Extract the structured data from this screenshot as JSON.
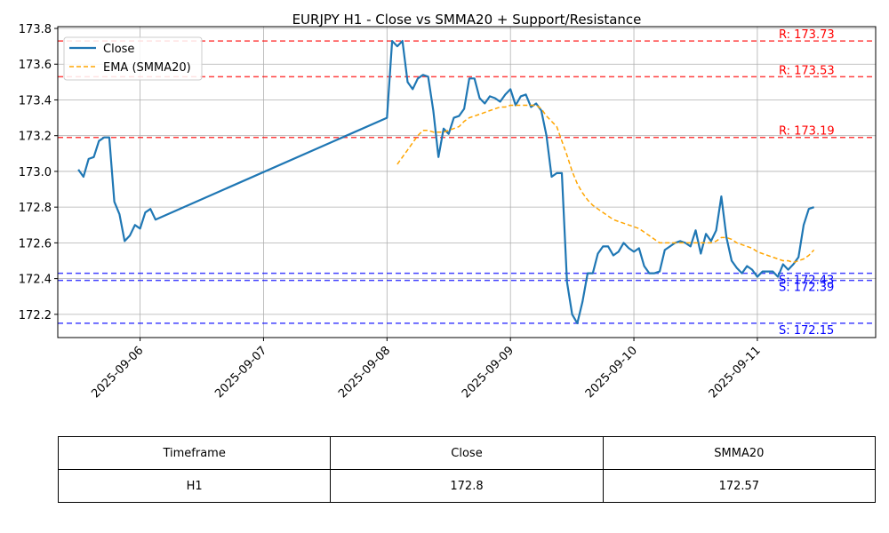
{
  "chart_data": {
    "type": "line",
    "title": "EURJPY H1 - Close vs SMMA20 + Support/Resistance",
    "xlabel": "",
    "ylabel": "",
    "ylim": [
      172.07,
      173.81
    ],
    "xlim": [
      "2025-09-05 08:00",
      "2025-09-11 23:00"
    ],
    "grid": true,
    "legend_position": "top-left",
    "y_ticks": [
      "172.2",
      "172.4",
      "172.6",
      "172.8",
      "173.0",
      "173.2",
      "173.4",
      "173.6",
      "173.8"
    ],
    "x_ticks": [
      "2025-09-06",
      "2025-09-07",
      "2025-09-08",
      "2025-09-09",
      "2025-09-10",
      "2025-09-11"
    ],
    "series": [
      {
        "name": "Close",
        "color": "#1f77b4",
        "style": "solid",
        "points": [
          [
            "2025-09-05 12:00",
            173.01
          ],
          [
            "2025-09-05 13:00",
            172.97
          ],
          [
            "2025-09-05 14:00",
            173.07
          ],
          [
            "2025-09-05 15:00",
            173.08
          ],
          [
            "2025-09-05 16:00",
            173.17
          ],
          [
            "2025-09-05 17:00",
            173.19
          ],
          [
            "2025-09-05 18:00",
            173.19
          ],
          [
            "2025-09-05 19:00",
            172.83
          ],
          [
            "2025-09-05 20:00",
            172.76
          ],
          [
            "2025-09-05 21:00",
            172.61
          ],
          [
            "2025-09-05 22:00",
            172.64
          ],
          [
            "2025-09-05 23:00",
            172.7
          ],
          [
            "2025-09-06 00:00",
            172.68
          ],
          [
            "2025-09-06 01:00",
            172.77
          ],
          [
            "2025-09-06 02:00",
            172.79
          ],
          [
            "2025-09-06 03:00",
            172.73
          ],
          [
            "2025-09-08 00:00",
            173.3
          ],
          [
            "2025-09-08 01:00",
            173.73
          ],
          [
            "2025-09-08 02:00",
            173.7
          ],
          [
            "2025-09-08 03:00",
            173.73
          ],
          [
            "2025-09-08 04:00",
            173.5
          ],
          [
            "2025-09-08 05:00",
            173.46
          ],
          [
            "2025-09-08 06:00",
            173.52
          ],
          [
            "2025-09-08 07:00",
            173.54
          ],
          [
            "2025-09-08 08:00",
            173.53
          ],
          [
            "2025-09-08 09:00",
            173.34
          ],
          [
            "2025-09-08 10:00",
            173.08
          ],
          [
            "2025-09-08 11:00",
            173.24
          ],
          [
            "2025-09-08 12:00",
            173.21
          ],
          [
            "2025-09-08 13:00",
            173.3
          ],
          [
            "2025-09-08 14:00",
            173.31
          ],
          [
            "2025-09-08 15:00",
            173.35
          ],
          [
            "2025-09-08 16:00",
            173.52
          ],
          [
            "2025-09-08 17:00",
            173.52
          ],
          [
            "2025-09-08 18:00",
            173.41
          ],
          [
            "2025-09-08 19:00",
            173.38
          ],
          [
            "2025-09-08 20:00",
            173.42
          ],
          [
            "2025-09-08 21:00",
            173.41
          ],
          [
            "2025-09-08 22:00",
            173.39
          ],
          [
            "2025-09-08 23:00",
            173.43
          ],
          [
            "2025-09-09 00:00",
            173.46
          ],
          [
            "2025-09-09 01:00",
            173.37
          ],
          [
            "2025-09-09 02:00",
            173.42
          ],
          [
            "2025-09-09 03:00",
            173.43
          ],
          [
            "2025-09-09 04:00",
            173.36
          ],
          [
            "2025-09-09 05:00",
            173.38
          ],
          [
            "2025-09-09 06:00",
            173.34
          ],
          [
            "2025-09-09 07:00",
            173.2
          ],
          [
            "2025-09-09 08:00",
            172.97
          ],
          [
            "2025-09-09 09:00",
            172.99
          ],
          [
            "2025-09-09 10:00",
            172.99
          ],
          [
            "2025-09-09 11:00",
            172.38
          ],
          [
            "2025-09-09 12:00",
            172.2
          ],
          [
            "2025-09-09 13:00",
            172.15
          ],
          [
            "2025-09-09 14:00",
            172.27
          ],
          [
            "2025-09-09 15:00",
            172.43
          ],
          [
            "2025-09-09 16:00",
            172.43
          ],
          [
            "2025-09-09 17:00",
            172.54
          ],
          [
            "2025-09-09 18:00",
            172.58
          ],
          [
            "2025-09-09 19:00",
            172.58
          ],
          [
            "2025-09-09 20:00",
            172.53
          ],
          [
            "2025-09-09 21:00",
            172.55
          ],
          [
            "2025-09-09 22:00",
            172.6
          ],
          [
            "2025-09-09 23:00",
            172.57
          ],
          [
            "2025-09-10 00:00",
            172.55
          ],
          [
            "2025-09-10 01:00",
            172.57
          ],
          [
            "2025-09-10 02:00",
            172.47
          ],
          [
            "2025-09-10 03:00",
            172.43
          ],
          [
            "2025-09-10 04:00",
            172.43
          ],
          [
            "2025-09-10 05:00",
            172.44
          ],
          [
            "2025-09-10 06:00",
            172.56
          ],
          [
            "2025-09-10 07:00",
            172.58
          ],
          [
            "2025-09-10 08:00",
            172.6
          ],
          [
            "2025-09-10 09:00",
            172.61
          ],
          [
            "2025-09-10 10:00",
            172.6
          ],
          [
            "2025-09-10 11:00",
            172.58
          ],
          [
            "2025-09-10 12:00",
            172.67
          ],
          [
            "2025-09-10 13:00",
            172.54
          ],
          [
            "2025-09-10 14:00",
            172.65
          ],
          [
            "2025-09-10 15:00",
            172.61
          ],
          [
            "2025-09-10 16:00",
            172.67
          ],
          [
            "2025-09-10 17:00",
            172.86
          ],
          [
            "2025-09-10 18:00",
            172.63
          ],
          [
            "2025-09-10 19:00",
            172.5
          ],
          [
            "2025-09-10 20:00",
            172.46
          ],
          [
            "2025-09-10 21:00",
            172.43
          ],
          [
            "2025-09-10 22:00",
            172.47
          ],
          [
            "2025-09-10 23:00",
            172.45
          ],
          [
            "2025-09-11 00:00",
            172.41
          ],
          [
            "2025-09-11 01:00",
            172.44
          ],
          [
            "2025-09-11 02:00",
            172.44
          ],
          [
            "2025-09-11 03:00",
            172.44
          ],
          [
            "2025-09-11 04:00",
            172.41
          ],
          [
            "2025-09-11 05:00",
            172.48
          ],
          [
            "2025-09-11 06:00",
            172.45
          ],
          [
            "2025-09-11 07:00",
            172.48
          ],
          [
            "2025-09-11 08:00",
            172.52
          ],
          [
            "2025-09-11 09:00",
            172.7
          ],
          [
            "2025-09-11 10:00",
            172.79
          ],
          [
            "2025-09-11 11:00",
            172.8
          ]
        ]
      },
      {
        "name": "EMA (SMMA20)",
        "color": "#ffa500",
        "style": "dashed",
        "points": [
          [
            "2025-09-08 02:00",
            173.04
          ],
          [
            "2025-09-08 03:00",
            173.08
          ],
          [
            "2025-09-08 04:00",
            173.12
          ],
          [
            "2025-09-08 05:00",
            173.16
          ],
          [
            "2025-09-08 06:00",
            173.2
          ],
          [
            "2025-09-08 07:00",
            173.23
          ],
          [
            "2025-09-08 08:00",
            173.23
          ],
          [
            "2025-09-08 09:00",
            173.22
          ],
          [
            "2025-09-08 10:00",
            173.22
          ],
          [
            "2025-09-08 11:00",
            173.22
          ],
          [
            "2025-09-08 12:00",
            173.23
          ],
          [
            "2025-09-08 13:00",
            173.24
          ],
          [
            "2025-09-08 14:00",
            173.25
          ],
          [
            "2025-09-08 15:00",
            173.28
          ],
          [
            "2025-09-08 16:00",
            173.3
          ],
          [
            "2025-09-08 17:00",
            173.31
          ],
          [
            "2025-09-08 18:00",
            173.32
          ],
          [
            "2025-09-08 19:00",
            173.33
          ],
          [
            "2025-09-08 20:00",
            173.34
          ],
          [
            "2025-09-08 21:00",
            173.35
          ],
          [
            "2025-09-08 22:00",
            173.36
          ],
          [
            "2025-09-08 23:00",
            173.36
          ],
          [
            "2025-09-09 00:00",
            173.37
          ],
          [
            "2025-09-09 01:00",
            173.37
          ],
          [
            "2025-09-09 02:00",
            173.37
          ],
          [
            "2025-09-09 03:00",
            173.37
          ],
          [
            "2025-09-09 04:00",
            173.37
          ],
          [
            "2025-09-09 05:00",
            173.37
          ],
          [
            "2025-09-09 06:00",
            173.35
          ],
          [
            "2025-09-09 07:00",
            173.31
          ],
          [
            "2025-09-09 08:00",
            173.28
          ],
          [
            "2025-09-09 09:00",
            173.25
          ],
          [
            "2025-09-09 10:00",
            173.17
          ],
          [
            "2025-09-09 11:00",
            173.09
          ],
          [
            "2025-09-09 12:00",
            173.0
          ],
          [
            "2025-09-09 13:00",
            172.93
          ],
          [
            "2025-09-09 14:00",
            172.88
          ],
          [
            "2025-09-09 15:00",
            172.84
          ],
          [
            "2025-09-09 16:00",
            172.81
          ],
          [
            "2025-09-09 17:00",
            172.79
          ],
          [
            "2025-09-09 18:00",
            172.77
          ],
          [
            "2025-09-09 19:00",
            172.75
          ],
          [
            "2025-09-09 20:00",
            172.73
          ],
          [
            "2025-09-09 21:00",
            172.72
          ],
          [
            "2025-09-09 22:00",
            172.71
          ],
          [
            "2025-09-09 23:00",
            172.7
          ],
          [
            "2025-09-10 00:00",
            172.69
          ],
          [
            "2025-09-10 01:00",
            172.68
          ],
          [
            "2025-09-10 02:00",
            172.66
          ],
          [
            "2025-09-10 03:00",
            172.64
          ],
          [
            "2025-09-10 04:00",
            172.62
          ],
          [
            "2025-09-10 05:00",
            172.6
          ],
          [
            "2025-09-10 06:00",
            172.6
          ],
          [
            "2025-09-10 07:00",
            172.6
          ],
          [
            "2025-09-10 08:00",
            172.6
          ],
          [
            "2025-09-10 09:00",
            172.6
          ],
          [
            "2025-09-10 10:00",
            172.6
          ],
          [
            "2025-09-10 11:00",
            172.6
          ],
          [
            "2025-09-10 12:00",
            172.6
          ],
          [
            "2025-09-10 13:00",
            172.6
          ],
          [
            "2025-09-10 14:00",
            172.6
          ],
          [
            "2025-09-10 15:00",
            172.6
          ],
          [
            "2025-09-10 16:00",
            172.61
          ],
          [
            "2025-09-10 17:00",
            172.63
          ],
          [
            "2025-09-10 18:00",
            172.63
          ],
          [
            "2025-09-10 19:00",
            172.62
          ],
          [
            "2025-09-10 20:00",
            172.6
          ],
          [
            "2025-09-10 21:00",
            172.59
          ],
          [
            "2025-09-10 22:00",
            172.58
          ],
          [
            "2025-09-10 23:00",
            172.57
          ],
          [
            "2025-09-11 00:00",
            172.55
          ],
          [
            "2025-09-11 01:00",
            172.54
          ],
          [
            "2025-09-11 02:00",
            172.53
          ],
          [
            "2025-09-11 03:00",
            172.52
          ],
          [
            "2025-09-11 04:00",
            172.51
          ],
          [
            "2025-09-11 05:00",
            172.5
          ],
          [
            "2025-09-11 06:00",
            172.5
          ],
          [
            "2025-09-11 07:00",
            172.49
          ],
          [
            "2025-09-11 08:00",
            172.5
          ],
          [
            "2025-09-11 09:00",
            172.51
          ],
          [
            "2025-09-11 10:00",
            172.53
          ],
          [
            "2025-09-11 11:00",
            172.56
          ]
        ]
      }
    ],
    "levels": [
      {
        "kind": "resistance",
        "value": 173.73,
        "label": "R: 173.73",
        "color": "#ff0000"
      },
      {
        "kind": "resistance",
        "value": 173.53,
        "label": "R: 173.53",
        "color": "#ff0000"
      },
      {
        "kind": "resistance",
        "value": 173.19,
        "label": "R: 173.19",
        "color": "#ff0000"
      },
      {
        "kind": "support",
        "value": 172.43,
        "label": "S: 172.43",
        "color": "#0000ff"
      },
      {
        "kind": "support",
        "value": 172.39,
        "label": "S: 172.39",
        "color": "#0000ff"
      },
      {
        "kind": "support",
        "value": 172.15,
        "label": "S: 172.15",
        "color": "#0000ff"
      }
    ]
  },
  "table": {
    "headers": [
      "Timeframe",
      "Close",
      "SMMA20"
    ],
    "row": [
      "H1",
      "172.8",
      "172.57"
    ]
  }
}
